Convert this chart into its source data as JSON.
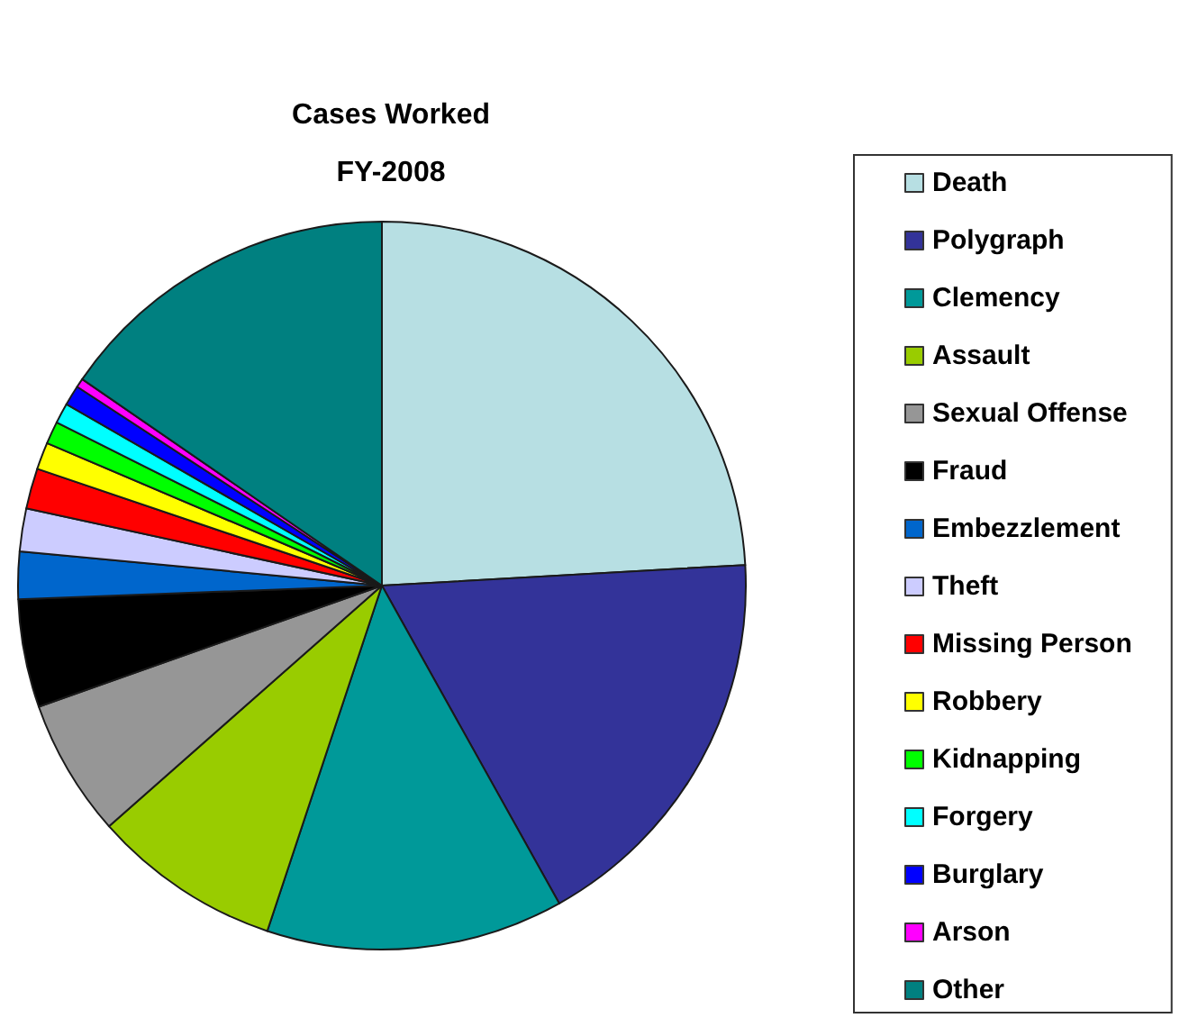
{
  "chart_data": {
    "type": "pie",
    "title": "Cases Worked",
    "subtitle": "FY-2008",
    "categories": [
      "Death",
      "Polygraph",
      "Clemency",
      "Assault",
      "Sexual Offense",
      "Fraud",
      "Embezzlement",
      "Theft",
      "Missing Person",
      "Robbery",
      "Kidnapping",
      "Forgery",
      "Burglary",
      "Arson",
      "Other"
    ],
    "values": [
      24.1,
      17.8,
      13.2,
      8.4,
      6.1,
      4.8,
      2.1,
      1.9,
      1.8,
      1.2,
      1.0,
      0.9,
      0.9,
      0.4,
      15.4
    ],
    "colors": [
      "#b7dfe3",
      "#333399",
      "#009999",
      "#99cc00",
      "#969696",
      "#000000",
      "#0066cc",
      "#ccccff",
      "#ff0000",
      "#ffff00",
      "#00ff00",
      "#00ffff",
      "#0000ff",
      "#ff00ff",
      "#008080"
    ],
    "legend": "right"
  }
}
